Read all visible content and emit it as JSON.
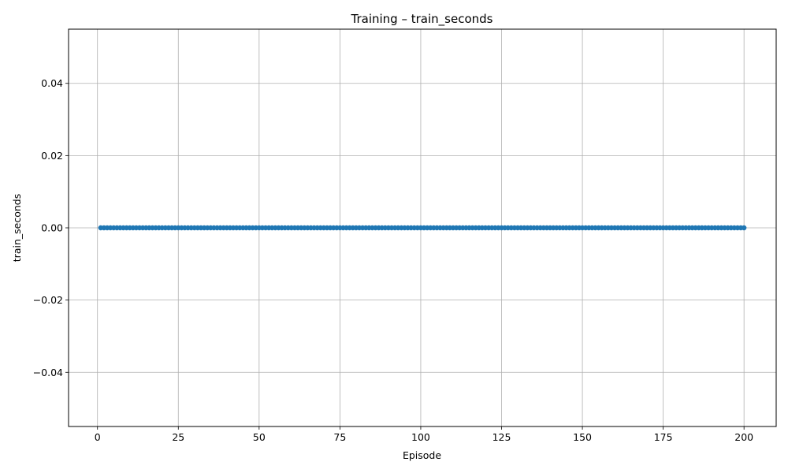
{
  "chart_data": {
    "type": "line",
    "title": "Training – train_seconds",
    "xlabel": "Episode",
    "ylabel": "train_seconds",
    "xlim": [
      -8.95,
      209.95
    ],
    "ylim": [
      -0.055,
      0.055
    ],
    "xticks": [
      0,
      25,
      50,
      75,
      100,
      125,
      150,
      175,
      200
    ],
    "xtick_labels": [
      "0",
      "25",
      "50",
      "75",
      "100",
      "125",
      "150",
      "175",
      "200"
    ],
    "yticks": [
      0.04,
      0.02,
      0.0,
      -0.02,
      -0.04
    ],
    "ytick_labels": [
      "0.04",
      "0.02",
      "0.00",
      "−0.02",
      "−0.04"
    ],
    "grid": true,
    "marker": "circle",
    "series_color": "#1f77b4",
    "x_range": [
      1,
      200
    ],
    "x_step": 1,
    "constant_y": 0.0
  }
}
